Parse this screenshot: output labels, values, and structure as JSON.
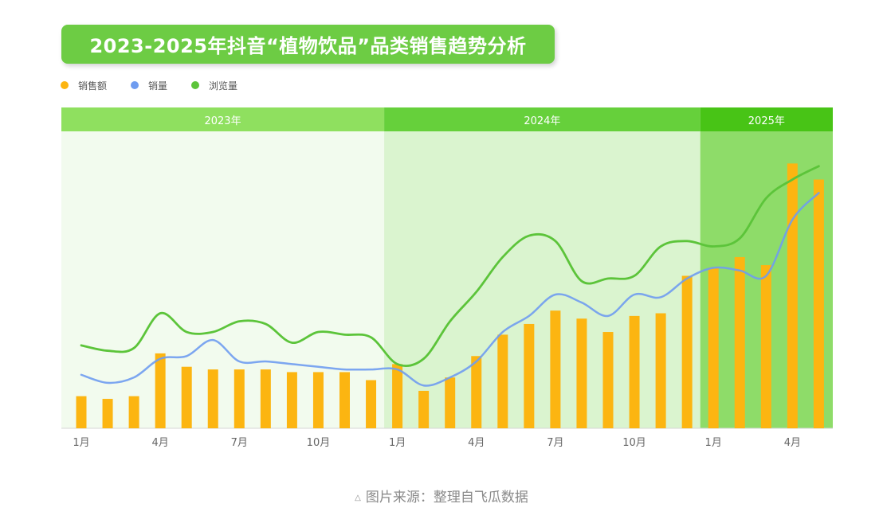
{
  "title": "2023-2025年抖音“植物饮品”品类销售趋势分析",
  "source": {
    "icon": "triangle-icon",
    "symbol": "△",
    "text": "图片来源：整理自飞瓜数据"
  },
  "colors": {
    "sales_amount": "#fcb511",
    "sales_volume": "#6f9cf0",
    "views": "#5cc43a",
    "band_2023": "#8fe05f",
    "band_2024": "#66d03b",
    "band_2025": "#48c416",
    "bg_2023": "#f2fbee",
    "bg_2024": "#daf4cf",
    "bg_2025": "#8edc69"
  },
  "chart_data": {
    "type": "bar",
    "title": "2023-2025年抖音“植物饮品”品类销售趋势分析",
    "xlabel": "",
    "ylabel": "",
    "grid": false,
    "legend_position": "top-left",
    "y_axis_shown": false,
    "periods": [
      {
        "label": "2023年",
        "months": 12
      },
      {
        "label": "2024年",
        "months": 12
      },
      {
        "label": "2025年",
        "months": 5
      }
    ],
    "tick_labels": [
      "1月",
      "",
      "",
      "4月",
      "",
      "",
      "7月",
      "",
      "",
      "10月",
      "",
      "",
      "1月",
      "",
      "",
      "4月",
      "",
      "",
      "7月",
      "",
      "",
      "10月",
      "",
      "",
      "1月",
      "",
      "",
      "4月",
      ""
    ],
    "ylim": [
      0,
      100
    ],
    "series": [
      {
        "name": "销售额",
        "type": "bar",
        "values": [
          12,
          11,
          12,
          28,
          23,
          22,
          22,
          22,
          21,
          21,
          21,
          18,
          24,
          14,
          19,
          27,
          35,
          39,
          44,
          41,
          36,
          42,
          43,
          57,
          60,
          64,
          61,
          99,
          93
        ]
      },
      {
        "name": "销量",
        "type": "line",
        "values": [
          20,
          17,
          19,
          26,
          27,
          33,
          25,
          25,
          24,
          23,
          22,
          22,
          22,
          16,
          19,
          25,
          36,
          42,
          50,
          47,
          42,
          50,
          49,
          56,
          60,
          59,
          57,
          78,
          88
        ]
      },
      {
        "name": "浏览量",
        "type": "line",
        "values": [
          31,
          29,
          30,
          43,
          36,
          36,
          40,
          39,
          32,
          36,
          35,
          34,
          24,
          26,
          40,
          51,
          64,
          72,
          70,
          55,
          56,
          57,
          68,
          70,
          68,
          71,
          86,
          93,
          98
        ]
      }
    ]
  }
}
